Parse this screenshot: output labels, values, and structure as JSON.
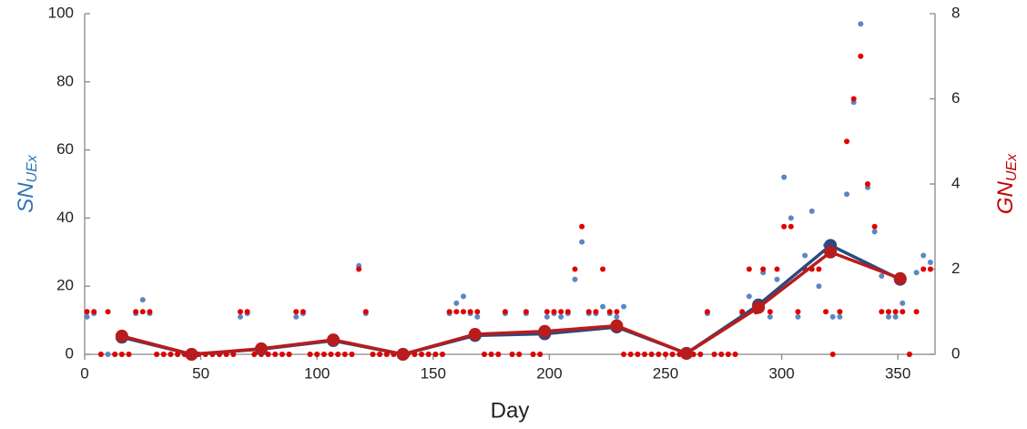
{
  "chart_data": {
    "type": "scatter",
    "xlabel": "Day",
    "ylabel": {
      "text": "SN",
      "sub": "UEx",
      "color": "#2e75b6"
    },
    "y2label": {
      "text": "GN",
      "sub": "UEx",
      "color": "#c00000"
    },
    "xlim": [
      0,
      366
    ],
    "xticks": [
      0,
      50,
      100,
      150,
      200,
      250,
      300,
      350
    ],
    "ylim": [
      0,
      100
    ],
    "yticks": [
      0,
      20,
      40,
      60,
      80,
      100
    ],
    "y2lim": [
      0,
      8
    ],
    "y2ticks": [
      0,
      2,
      4,
      6,
      8
    ],
    "grid": false,
    "series": [
      {
        "type": "scatter",
        "color": "#5b87c2",
        "x": [
          1,
          4,
          7,
          10,
          13,
          16,
          19,
          22,
          25,
          28,
          31,
          34,
          37,
          40,
          43,
          46,
          49,
          52,
          55,
          58,
          61,
          64,
          67,
          70,
          73,
          76,
          79,
          82,
          85,
          88,
          91,
          94,
          97,
          100,
          103,
          106,
          109,
          112,
          115,
          118,
          121,
          124,
          127,
          130,
          133,
          136,
          139,
          142,
          145,
          148,
          151,
          154,
          157,
          160,
          163,
          166,
          169,
          172,
          175,
          178,
          181,
          184,
          187,
          190,
          193,
          196,
          199,
          202,
          205,
          208,
          211,
          214,
          217,
          220,
          223,
          226,
          229,
          232,
          235,
          238,
          241,
          244,
          247,
          250,
          253,
          256,
          259,
          262,
          265,
          268,
          271,
          274,
          277,
          280,
          283,
          286,
          289,
          292,
          295,
          298,
          301,
          304,
          307,
          310,
          313,
          316,
          319,
          322,
          325,
          328,
          331,
          334,
          337,
          340,
          343,
          346,
          349,
          352,
          355,
          358,
          361,
          364
        ],
        "values": [
          11,
          12,
          0,
          0,
          0,
          0,
          0,
          12,
          16,
          12,
          0,
          0,
          0,
          0,
          0,
          0,
          0,
          0,
          0,
          0,
          0,
          0,
          11,
          12,
          0,
          0,
          0,
          0,
          0,
          0,
          11,
          12,
          0,
          0,
          0,
          0,
          0,
          0,
          0,
          26,
          12,
          0,
          0,
          0,
          0,
          0,
          0,
          0,
          0,
          0,
          0,
          0,
          12,
          15,
          17,
          12,
          11,
          0,
          0,
          0,
          12,
          0,
          0,
          12,
          0,
          0,
          11,
          12,
          11,
          12,
          22,
          33,
          12,
          12,
          14,
          12,
          11,
          14,
          0,
          0,
          0,
          0,
          0,
          0,
          0,
          0,
          0,
          0,
          0,
          12,
          0,
          0,
          0,
          0,
          12,
          17,
          14,
          24,
          11,
          22,
          52,
          40,
          11,
          29,
          42,
          20,
          32,
          11,
          11,
          47,
          74,
          97,
          49,
          36,
          23,
          11,
          11,
          15,
          0,
          24,
          29,
          27
        ]
      },
      {
        "type": "scatter",
        "axis": "y2",
        "color": "#e00000",
        "x": [
          1,
          4,
          7,
          10,
          13,
          16,
          19,
          22,
          25,
          28,
          31,
          34,
          37,
          40,
          43,
          46,
          49,
          52,
          55,
          58,
          61,
          64,
          67,
          70,
          73,
          76,
          79,
          82,
          85,
          88,
          91,
          94,
          97,
          100,
          103,
          106,
          109,
          112,
          115,
          118,
          121,
          124,
          127,
          130,
          133,
          136,
          139,
          142,
          145,
          148,
          151,
          154,
          157,
          160,
          163,
          166,
          169,
          172,
          175,
          178,
          181,
          184,
          187,
          190,
          193,
          196,
          199,
          202,
          205,
          208,
          211,
          214,
          217,
          220,
          223,
          226,
          229,
          232,
          235,
          238,
          241,
          244,
          247,
          250,
          253,
          256,
          259,
          262,
          265,
          268,
          271,
          274,
          277,
          280,
          283,
          286,
          289,
          292,
          295,
          298,
          301,
          304,
          307,
          310,
          313,
          316,
          319,
          322,
          325,
          328,
          331,
          334,
          337,
          340,
          343,
          346,
          349,
          352,
          355,
          358,
          361,
          364
        ],
        "values": [
          1,
          1,
          0,
          1,
          0,
          0,
          0,
          1,
          1,
          1,
          0,
          0,
          0,
          0,
          0,
          0,
          0,
          0,
          0,
          0,
          0,
          0,
          1,
          1,
          0,
          0,
          0,
          0,
          0,
          0,
          1,
          1,
          0,
          0,
          0,
          0,
          0,
          0,
          0,
          2,
          1,
          0,
          0,
          0,
          0,
          0,
          0,
          0,
          0,
          0,
          0,
          0,
          1,
          1,
          1,
          1,
          1,
          0,
          0,
          0,
          1,
          0,
          0,
          1,
          0,
          0,
          1,
          1,
          1,
          1,
          2,
          3,
          1,
          1,
          2,
          1,
          1,
          0,
          0,
          0,
          0,
          0,
          0,
          0,
          0,
          0,
          0,
          0,
          0,
          1,
          0,
          0,
          0,
          0,
          1,
          2,
          1,
          2,
          1,
          2,
          3,
          3,
          1,
          2,
          2,
          2,
          1,
          0,
          1,
          5,
          6,
          7,
          4,
          3,
          1,
          1,
          1,
          1,
          0,
          1,
          2,
          2
        ]
      },
      {
        "type": "line",
        "color": "#2a4a80",
        "x": [
          16,
          46,
          76,
          107,
          137,
          168,
          198,
          229,
          259,
          290,
          321,
          351
        ],
        "values": [
          5,
          0,
          1.5,
          4,
          0,
          5.5,
          6,
          8,
          0.3,
          14.5,
          32,
          22
        ]
      },
      {
        "type": "line",
        "axis": "y2",
        "color": "#b81c1c",
        "x": [
          16,
          46,
          76,
          107,
          137,
          168,
          198,
          229,
          259,
          290,
          321,
          351
        ],
        "values": [
          0.43,
          0,
          0.13,
          0.34,
          0,
          0.47,
          0.54,
          0.67,
          0.02,
          1.1,
          2.4,
          1.78
        ]
      }
    ]
  }
}
